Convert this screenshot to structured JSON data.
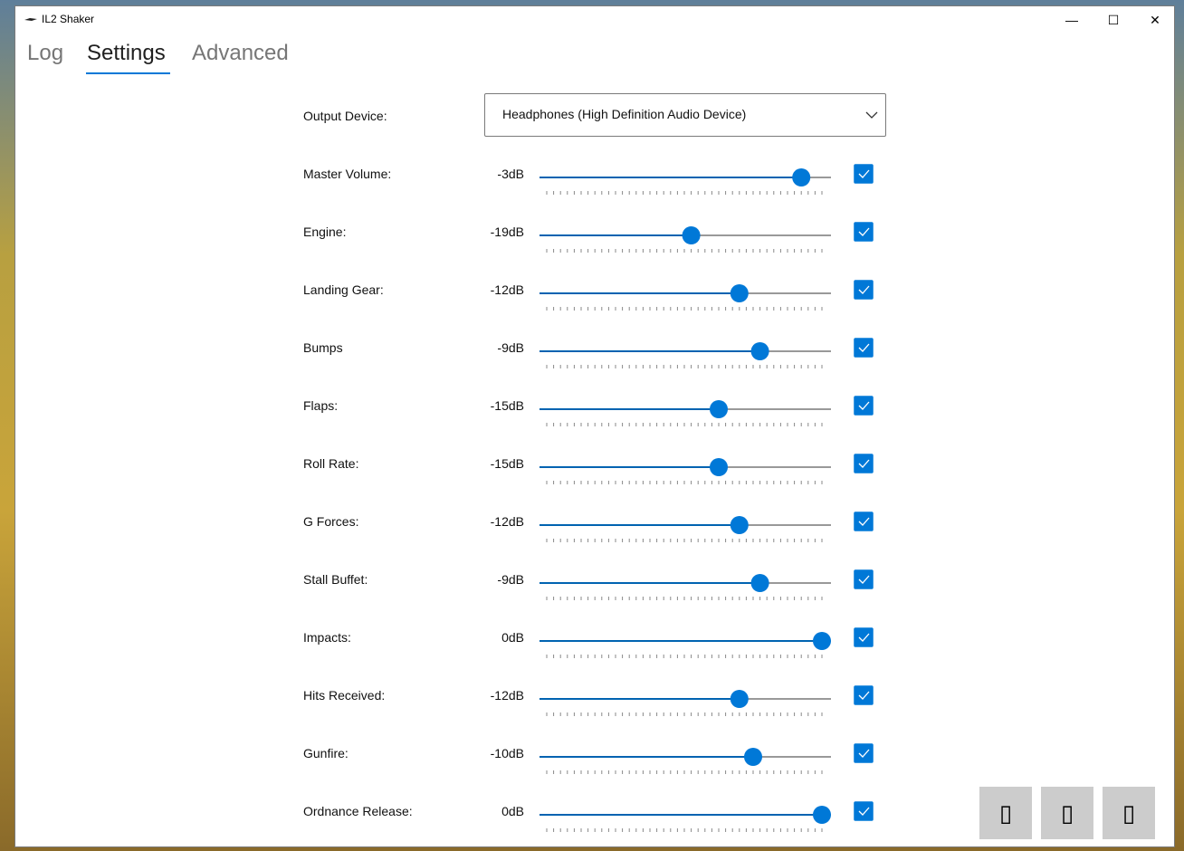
{
  "window": {
    "title": "IL2 Shaker"
  },
  "tabs": [
    {
      "label": "Log",
      "active": false
    },
    {
      "label": "Settings",
      "active": true
    },
    {
      "label": "Advanced",
      "active": false
    }
  ],
  "output_device": {
    "label": "Output Device:",
    "value": "Headphones (High Definition Audio Device)"
  },
  "slider": {
    "min": -40,
    "max": 0,
    "tick_step": 1
  },
  "rows": [
    {
      "label": "Master Volume:",
      "value": -3,
      "value_label": "-3dB",
      "enabled": true
    },
    {
      "label": "Engine:",
      "value": -19,
      "value_label": "-19dB",
      "enabled": true
    },
    {
      "label": "Landing Gear:",
      "value": -12,
      "value_label": "-12dB",
      "enabled": true
    },
    {
      "label": "Bumps",
      "value": -9,
      "value_label": "-9dB",
      "enabled": true
    },
    {
      "label": "Flaps:",
      "value": -15,
      "value_label": "-15dB",
      "enabled": true
    },
    {
      "label": "Roll Rate:",
      "value": -15,
      "value_label": "-15dB",
      "enabled": true
    },
    {
      "label": "G Forces:",
      "value": -12,
      "value_label": "-12dB",
      "enabled": true
    },
    {
      "label": "Stall Buffet:",
      "value": -9,
      "value_label": "-9dB",
      "enabled": true
    },
    {
      "label": "Impacts:",
      "value": 0,
      "value_label": "0dB",
      "enabled": true
    },
    {
      "label": "Hits Received:",
      "value": -12,
      "value_label": "-12dB",
      "enabled": true
    },
    {
      "label": "Gunfire:",
      "value": -10,
      "value_label": "-10dB",
      "enabled": true
    },
    {
      "label": "Ordnance Release:",
      "value": 0,
      "value_label": "0dB",
      "enabled": true
    }
  ]
}
